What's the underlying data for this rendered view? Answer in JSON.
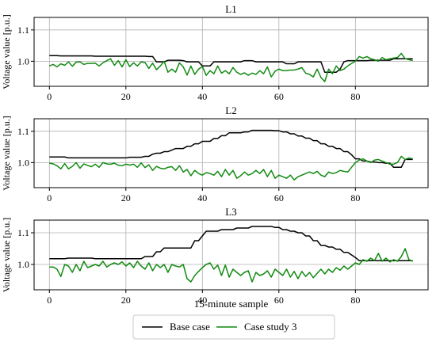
{
  "chart_data": [
    {
      "type": "line",
      "title": "L1",
      "ylabel": "Voltage value [p.u.]",
      "xlabel": "",
      "xlim": [
        -4,
        99
      ],
      "ylim": [
        0.92,
        1.14
      ],
      "xticks": [
        0,
        20,
        40,
        60,
        80
      ],
      "yticks": [
        1.0,
        1.1
      ],
      "ytick_labels": [
        "1.0",
        "1.1"
      ],
      "grid": true,
      "series": [
        {
          "name": "Base case",
          "color": "#000000",
          "values": [
            1.018,
            1.018,
            1.018,
            1.017,
            1.017,
            1.017,
            1.017,
            1.017,
            1.017,
            1.017,
            1.017,
            1.017,
            1.016,
            1.016,
            1.016,
            1.016,
            1.016,
            1.016,
            1.016,
            1.016,
            1.016,
            1.016,
            1.016,
            1.016,
            1.016,
            1.016,
            1.015,
            1.015,
            0.998,
            0.998,
            0.998,
            1.003,
            1.003,
            1.003,
            1.003,
            1.002,
            0.998,
            0.998,
            0.998,
            0.998,
            0.985,
            0.985,
            0.985,
            0.998,
            0.998,
            0.998,
            0.998,
            0.998,
            0.998,
            0.998,
            0.998,
            1.002,
            1.002,
            1.002,
            0.998,
            0.998,
            0.998,
            0.998,
            0.998,
            0.998,
            0.998,
            0.998,
            0.992,
            0.992,
            0.992,
            0.998,
            0.998,
            0.998,
            0.998,
            0.998,
            0.998,
            0.998,
            0.965,
            0.965,
            0.965,
            0.965,
            0.975,
            0.998,
            1.002,
            1.002,
            1.002,
            1.002,
            1.002,
            1.002,
            1.003,
            1.003,
            1.003,
            1.003,
            1.003,
            1.003,
            1.008,
            1.008,
            1.008,
            1.008,
            1.008,
            1.008
          ]
        },
        {
          "name": "Case study 3",
          "color": "#118a11",
          "values": [
            0.985,
            0.99,
            0.982,
            0.992,
            0.987,
            0.998,
            0.984,
            0.997,
            0.998,
            0.99,
            0.993,
            0.993,
            0.994,
            0.985,
            0.995,
            1.002,
            1.008,
            0.987,
            1.002,
            0.982,
            1.005,
            0.983,
            0.995,
            0.985,
            0.998,
            0.996,
            0.977,
            0.994,
            0.973,
            0.985,
            1.0,
            0.965,
            0.975,
            0.965,
            0.995,
            0.982,
            0.956,
            0.985,
            0.958,
            0.975,
            0.983,
            0.955,
            0.97,
            0.96,
            0.985,
            0.962,
            0.97,
            0.96,
            0.98,
            0.965,
            0.958,
            0.963,
            0.955,
            0.962,
            0.958,
            0.97,
            0.96,
            0.982,
            0.95,
            0.968,
            0.975,
            0.97,
            0.97,
            0.972,
            0.972,
            0.975,
            0.98,
            0.962,
            0.958,
            0.95,
            0.975,
            0.948,
            0.935,
            0.975,
            0.96,
            0.985,
            0.97,
            0.975,
            0.985,
            0.993,
            1.0,
            1.015,
            1.01,
            1.015,
            1.008,
            1.005,
            1.0,
            1.012,
            1.005,
            1.008,
            1.01,
            1.012,
            1.025,
            1.008,
            1.005,
            1.002
          ]
        }
      ]
    },
    {
      "type": "line",
      "title": "L2",
      "ylabel": "Voltage value [p.u.]",
      "xlabel": "",
      "xlim": [
        -4,
        99
      ],
      "ylim": [
        0.92,
        1.14
      ],
      "xticks": [
        0,
        20,
        40,
        60,
        80
      ],
      "yticks": [
        1.0,
        1.1
      ],
      "ytick_labels": [
        "1.0",
        "1.1"
      ],
      "grid": true,
      "series": [
        {
          "name": "Base case",
          "color": "#000000",
          "values": [
            1.018,
            1.018,
            1.018,
            1.018,
            1.018,
            1.015,
            1.015,
            1.015,
            1.015,
            1.015,
            1.015,
            1.015,
            1.015,
            1.015,
            1.015,
            1.015,
            1.015,
            1.015,
            1.015,
            1.015,
            1.015,
            1.017,
            1.017,
            1.017,
            1.017,
            1.02,
            1.02,
            1.027,
            1.03,
            1.03,
            1.035,
            1.035,
            1.04,
            1.045,
            1.045,
            1.045,
            1.052,
            1.052,
            1.06,
            1.06,
            1.068,
            1.068,
            1.068,
            1.077,
            1.077,
            1.086,
            1.086,
            1.095,
            1.095,
            1.095,
            1.095,
            1.098,
            1.098,
            1.103,
            1.103,
            1.103,
            1.103,
            1.103,
            1.103,
            1.102,
            1.102,
            1.098,
            1.098,
            1.092,
            1.092,
            1.085,
            1.085,
            1.078,
            1.078,
            1.07,
            1.07,
            1.06,
            1.06,
            1.052,
            1.052,
            1.045,
            1.045,
            1.035,
            1.035,
            1.025,
            1.012,
            1.012,
            1.005,
            1.005,
            1.002,
            1.002,
            1.0,
            1.0,
            0.998,
            0.998,
            0.985,
            0.985,
            0.985,
            1.01,
            1.01,
            1.01
          ]
        },
        {
          "name": "Case study 3",
          "color": "#118a11",
          "values": [
            0.998,
            0.996,
            0.99,
            0.98,
            0.997,
            0.98,
            0.988,
            1.0,
            0.982,
            0.996,
            0.991,
            0.987,
            0.995,
            0.985,
            1.0,
            0.996,
            0.995,
            0.998,
            0.992,
            0.99,
            0.995,
            0.992,
            0.995,
            0.985,
            0.999,
            0.984,
            0.993,
            0.975,
            0.988,
            0.982,
            0.98,
            0.985,
            0.987,
            0.975,
            0.99,
            0.97,
            0.978,
            0.958,
            0.975,
            0.965,
            0.96,
            0.968,
            0.965,
            0.96,
            0.972,
            0.955,
            0.978,
            0.96,
            0.975,
            0.95,
            0.958,
            0.97,
            0.96,
            0.965,
            0.975,
            0.965,
            0.978,
            0.955,
            0.975,
            0.95,
            0.96,
            0.955,
            0.95,
            0.96,
            0.945,
            0.955,
            0.96,
            0.965,
            0.97,
            0.965,
            0.972,
            0.96,
            0.955,
            0.97,
            0.965,
            0.968,
            0.975,
            0.972,
            0.97,
            0.985,
            1.0,
            1.008,
            1.012,
            1.005,
            1.0,
            1.008,
            1.01,
            1.005,
            1.0,
            0.995,
            0.995,
            1.0,
            1.02,
            1.01,
            1.015,
            1.012
          ]
        }
      ]
    },
    {
      "type": "line",
      "title": "L3",
      "ylabel": "Voltage value [p.u.]",
      "xlabel": "15-minute sample",
      "xlim": [
        -4,
        99
      ],
      "ylim": [
        0.92,
        1.14
      ],
      "xticks": [
        0,
        20,
        40,
        60,
        80
      ],
      "yticks": [
        1.0,
        1.1
      ],
      "ytick_labels": [
        "1.0",
        "1.1"
      ],
      "grid": true,
      "series": [
        {
          "name": "Base case",
          "color": "#000000",
          "values": [
            1.018,
            1.018,
            1.018,
            1.018,
            1.018,
            1.02,
            1.02,
            1.02,
            1.02,
            1.02,
            1.02,
            1.02,
            1.018,
            1.018,
            1.018,
            1.018,
            1.018,
            1.018,
            1.018,
            1.018,
            1.018,
            1.018,
            1.018,
            1.018,
            1.018,
            1.025,
            1.025,
            1.025,
            1.04,
            1.04,
            1.052,
            1.052,
            1.052,
            1.052,
            1.052,
            1.052,
            1.052,
            1.052,
            1.075,
            1.075,
            1.09,
            1.105,
            1.105,
            1.105,
            1.105,
            1.11,
            1.11,
            1.11,
            1.11,
            1.115,
            1.115,
            1.115,
            1.115,
            1.12,
            1.12,
            1.12,
            1.12,
            1.12,
            1.12,
            1.117,
            1.117,
            1.11,
            1.11,
            1.105,
            1.105,
            1.1,
            1.1,
            1.09,
            1.09,
            1.075,
            1.075,
            1.06,
            1.06,
            1.055,
            1.055,
            1.048,
            1.048,
            1.038,
            1.038,
            1.03,
            1.022,
            1.012,
            1.012,
            1.012,
            1.012,
            1.012,
            1.012,
            1.012,
            1.012,
            1.012,
            1.012,
            1.012,
            1.012,
            1.012,
            1.012,
            1.012
          ]
        },
        {
          "name": "Case study 3",
          "color": "#118a11",
          "values": [
            0.992,
            0.992,
            0.985,
            0.962,
            1.0,
            0.995,
            0.975,
            1.0,
            0.98,
            1.01,
            0.99,
            0.995,
            1.0,
            0.995,
            1.01,
            0.992,
            1.0,
            1.005,
            1.0,
            1.008,
            0.995,
            1.005,
            0.99,
            1.01,
            0.995,
            0.985,
            1.005,
            0.98,
            1.0,
            0.99,
            1.0,
            0.975,
            1.0,
            0.995,
            0.992,
            1.0,
            0.955,
            0.945,
            0.965,
            0.978,
            0.99,
            1.0,
            1.005,
            0.985,
            0.998,
            0.965,
            0.998,
            0.96,
            0.985,
            0.975,
            0.965,
            0.975,
            0.98,
            0.945,
            0.975,
            0.965,
            0.97,
            0.98,
            0.96,
            0.985,
            0.975,
            0.965,
            0.985,
            0.96,
            0.978,
            0.955,
            0.978,
            0.962,
            0.975,
            0.958,
            0.972,
            0.985,
            0.97,
            0.985,
            0.975,
            0.99,
            0.982,
            0.995,
            0.985,
            0.995,
            1.005,
            1.0,
            1.015,
            1.01,
            1.02,
            1.012,
            1.035,
            1.01,
            1.02,
            1.008,
            1.015,
            1.01,
            1.025,
            1.05,
            1.015,
            1.01
          ]
        }
      ]
    }
  ],
  "legend": {
    "items": [
      {
        "label": "Base case",
        "color": "#000000"
      },
      {
        "label": "Case study 3",
        "color": "#118a11"
      }
    ],
    "placement": "bottom-center"
  }
}
